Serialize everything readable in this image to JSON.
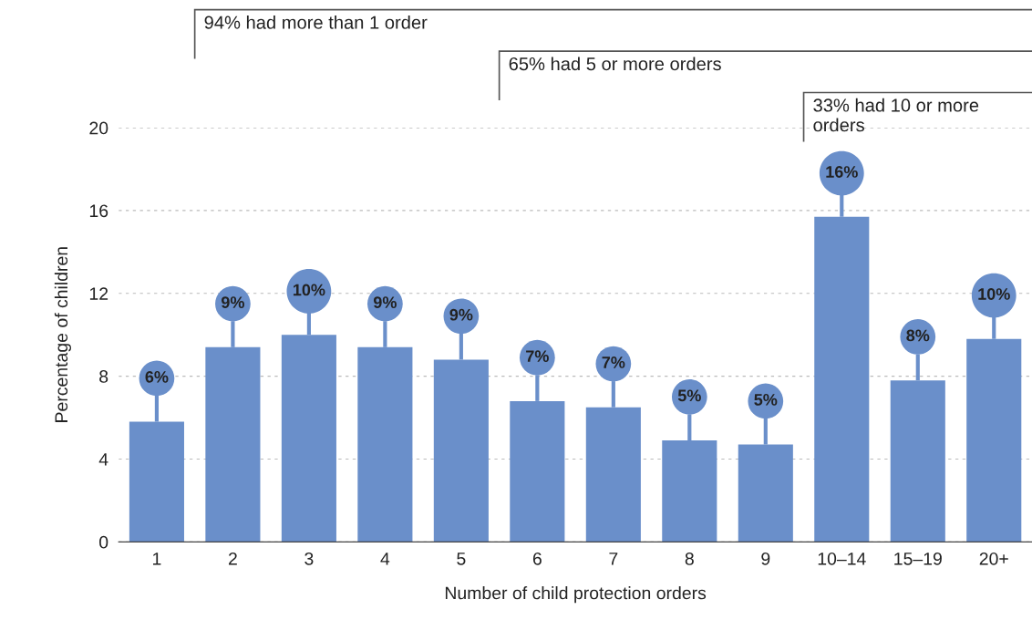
{
  "chart_data": {
    "type": "bar",
    "xlabel": "Number of child protection orders",
    "ylabel": "Percentage of children",
    "categories": [
      "1",
      "2",
      "3",
      "4",
      "5",
      "6",
      "7",
      "8",
      "9",
      "10–14",
      "15–19",
      "20+"
    ],
    "values": [
      5.8,
      9.4,
      10.0,
      9.4,
      8.8,
      6.8,
      6.5,
      4.9,
      4.7,
      15.7,
      7.8,
      9.8
    ],
    "value_labels": [
      "6%",
      "9%",
      "10%",
      "9%",
      "9%",
      "7%",
      "7%",
      "5%",
      "5%",
      "16%",
      "8%",
      "10%"
    ],
    "color": "#6a8fca",
    "ylim": [
      0,
      20
    ],
    "yticks": [
      0,
      4,
      8,
      12,
      16,
      20
    ],
    "grid": "y",
    "legend": false,
    "annotations": [
      "94% had more than 1 order",
      "65% had 5 or more orders",
      "33% had 10 or more orders"
    ]
  }
}
